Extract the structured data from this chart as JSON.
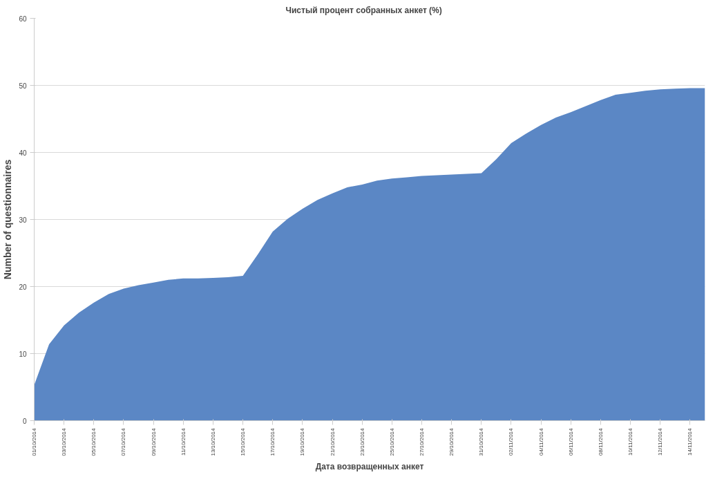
{
  "chart_data": {
    "type": "area",
    "title": "Чистый процент собранных анкет      (%)",
    "xlabel": "Дата возвращенных анкет",
    "ylabel": "Number of questionnaires",
    "x": [
      "2014-10-01",
      "2014-10-02",
      "2014-10-03",
      "2014-10-04",
      "2014-10-05",
      "2014-10-06",
      "2014-10-07",
      "2014-10-08",
      "2014-10-09",
      "2014-10-10",
      "2014-10-11",
      "2014-10-12",
      "2014-10-13",
      "2014-10-14",
      "2014-10-15",
      "2014-10-16",
      "2014-10-17",
      "2014-10-18",
      "2014-10-19",
      "2014-10-20",
      "2014-10-21",
      "2014-10-22",
      "2014-10-23",
      "2014-10-24",
      "2014-10-25",
      "2014-10-26",
      "2014-10-27",
      "2014-10-28",
      "2014-10-29",
      "2014-10-30",
      "2014-10-31",
      "2014-11-01",
      "2014-11-02",
      "2014-11-03",
      "2014-11-04",
      "2014-11-05",
      "2014-11-06",
      "2014-11-07",
      "2014-11-08",
      "2014-11-09",
      "2014-11-10",
      "2014-11-11",
      "2014-11-12",
      "2014-11-13",
      "2014-11-14",
      "2014-11-15"
    ],
    "series": [
      {
        "color": "#5b87c5",
        "values": [
          5.3,
          11.4,
          14.2,
          16.1,
          17.6,
          18.9,
          19.7,
          20.2,
          20.6,
          21.0,
          21.2,
          21.2,
          21.3,
          21.4,
          21.6,
          24.8,
          28.2,
          30.1,
          31.6,
          32.9,
          33.9,
          34.8,
          35.2,
          35.8,
          36.1,
          36.3,
          36.5,
          36.6,
          36.7,
          36.8,
          36.9,
          39.0,
          41.4,
          42.8,
          44.1,
          45.2,
          46.0,
          46.9,
          47.8,
          48.6,
          48.9,
          49.2,
          49.4,
          49.5,
          49.6,
          49.6
        ]
      }
    ],
    "xlim": [
      "2014-10-01",
      "2014-11-15"
    ],
    "xticks": [
      {
        "value": "2014-10-01",
        "label": "01/10/2014"
      },
      {
        "value": "2014-10-03",
        "label": "03/10/2014"
      },
      {
        "value": "2014-10-05",
        "label": "05/10/2014"
      },
      {
        "value": "2014-10-07",
        "label": "07/10/2014"
      },
      {
        "value": "2014-10-09",
        "label": "09/10/2014"
      },
      {
        "value": "2014-10-11",
        "label": "11/10/2014"
      },
      {
        "value": "2014-10-13",
        "label": "13/10/2014"
      },
      {
        "value": "2014-10-15",
        "label": "15/10/2014"
      },
      {
        "value": "2014-10-17",
        "label": "17/10/2014"
      },
      {
        "value": "2014-10-19",
        "label": "19/10/2014"
      },
      {
        "value": "2014-10-21",
        "label": "21/10/2014"
      },
      {
        "value": "2014-10-23",
        "label": "23/10/2014"
      },
      {
        "value": "2014-10-25",
        "label": "25/10/2014"
      },
      {
        "value": "2014-10-27",
        "label": "27/10/2014"
      },
      {
        "value": "2014-10-29",
        "label": "29/10/2014"
      },
      {
        "value": "2014-10-31",
        "label": "31/10/2014"
      },
      {
        "value": "2014-11-02",
        "label": "02/11/2014"
      },
      {
        "value": "2014-11-04",
        "label": "04/11/2014"
      },
      {
        "value": "2014-11-06",
        "label": "06/11/2014"
      },
      {
        "value": "2014-11-08",
        "label": "08/11/2014"
      },
      {
        "value": "2014-11-10",
        "label": "10/11/2014"
      },
      {
        "value": "2014-11-12",
        "label": "12/11/2014"
      },
      {
        "value": "2014-11-14",
        "label": "14/11/2014"
      }
    ],
    "ylim": [
      0,
      60
    ],
    "yticks": [
      0,
      10,
      20,
      30,
      40,
      50,
      60
    ],
    "grid": "y"
  }
}
